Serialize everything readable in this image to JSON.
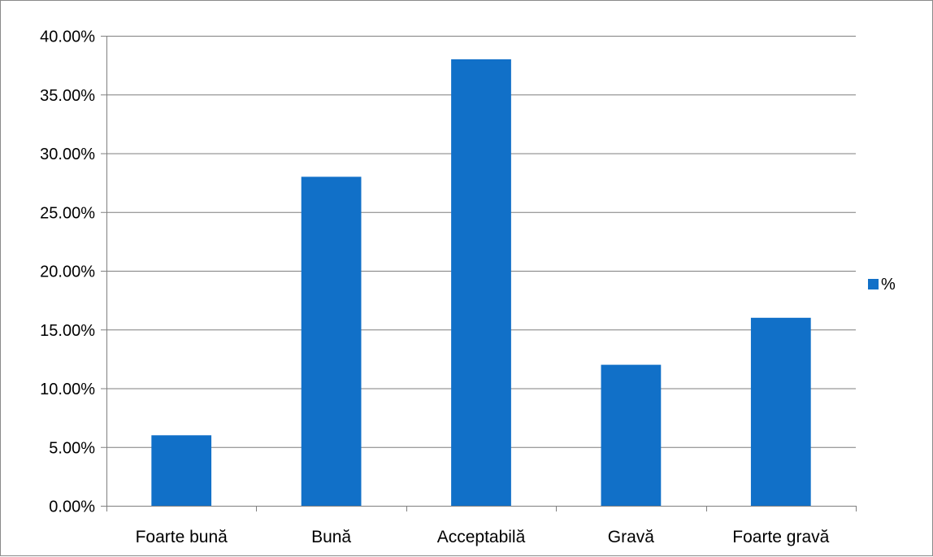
{
  "chart_data": {
    "type": "bar",
    "title": "",
    "xlabel": "",
    "ylabel": "",
    "categories": [
      "Foarte bună",
      "Bună",
      "Acceptabilă",
      "Gravă",
      "Foarte gravă"
    ],
    "series": [
      {
        "name": "%",
        "values": [
          6,
          28,
          38,
          12,
          16
        ],
        "color": "#1170C8"
      }
    ],
    "ylim": [
      0,
      40
    ],
    "yticks": [
      0,
      5,
      10,
      15,
      20,
      25,
      30,
      35,
      40
    ],
    "ytick_labels": [
      "0.00%",
      "5.00%",
      "10.00%",
      "15.00%",
      "20.00%",
      "25.00%",
      "30.00%",
      "35.00%",
      "40.00%"
    ],
    "grid": "horizontal",
    "legend_position": "right",
    "colors": {
      "gridline": "#7f7f7f",
      "axis": "#7f7f7f"
    }
  }
}
